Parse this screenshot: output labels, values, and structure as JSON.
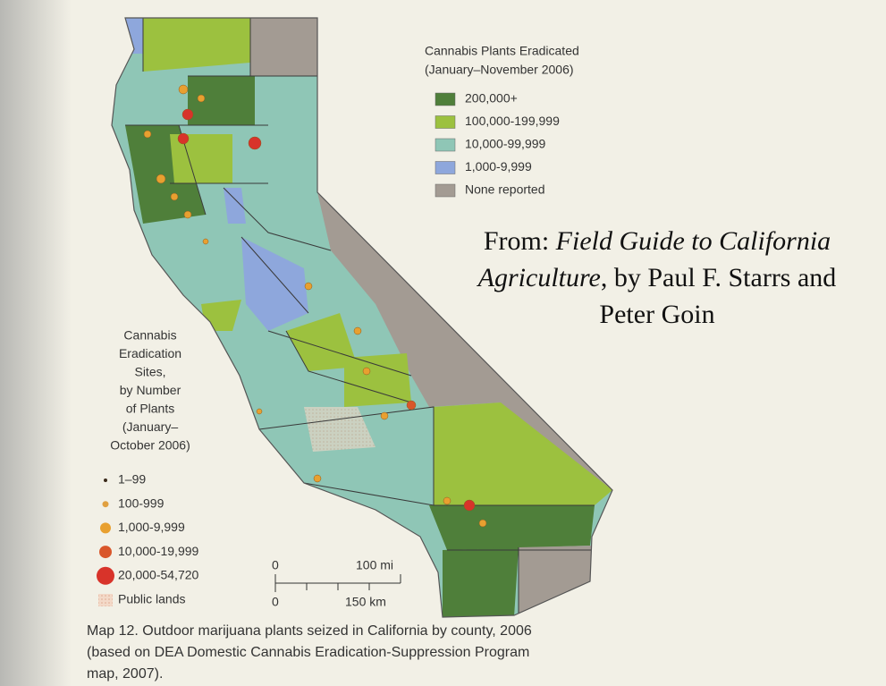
{
  "county_legend": {
    "title": "Cannabis Plants Eradicated",
    "subtitle": "(January–November 2006)",
    "items": [
      {
        "label": "200,000+",
        "color": "#4f7f3a"
      },
      {
        "label": "100,000-199,999",
        "color": "#9cc13f"
      },
      {
        "label": "10,000-99,999",
        "color": "#8fc6b6"
      },
      {
        "label": "1,000-9,999",
        "color": "#8ea7dc"
      },
      {
        "label": "None reported",
        "color": "#a39b93"
      }
    ]
  },
  "sites_legend": {
    "title_lines": [
      "Cannabis",
      "Eradication",
      "Sites,",
      "by Number",
      "of Plants",
      "(January–",
      "October 2006)"
    ],
    "items": [
      {
        "label": "1–99",
        "color": "#3a2a1a",
        "size": 2
      },
      {
        "label": "100-999",
        "color": "#e0a040",
        "size": 3.5
      },
      {
        "label": "1,000-9,999",
        "color": "#e8a030",
        "size": 6
      },
      {
        "label": "10,000-19,999",
        "color": "#d9562a",
        "size": 7
      },
      {
        "label": "20,000-54,720",
        "color": "#d8332a",
        "size": 10
      }
    ],
    "public_lands": "Public lands"
  },
  "scale_bar": {
    "mi_zero": "0",
    "mi": "100 mi",
    "km_zero": "0",
    "km": "150 km"
  },
  "source": {
    "from": "From:",
    "book_title_1": "Field Guide to California",
    "book_title_2": "Agriculture",
    "by": ", by Paul F. Starrs and",
    "authors_end": "Peter Goin"
  },
  "caption": [
    "Map 12. Outdoor marijuana plants seized in California by county, 2006",
    "(based on DEA Domestic Cannabis Eradication-Suppression Program",
    "map, 2007)."
  ]
}
